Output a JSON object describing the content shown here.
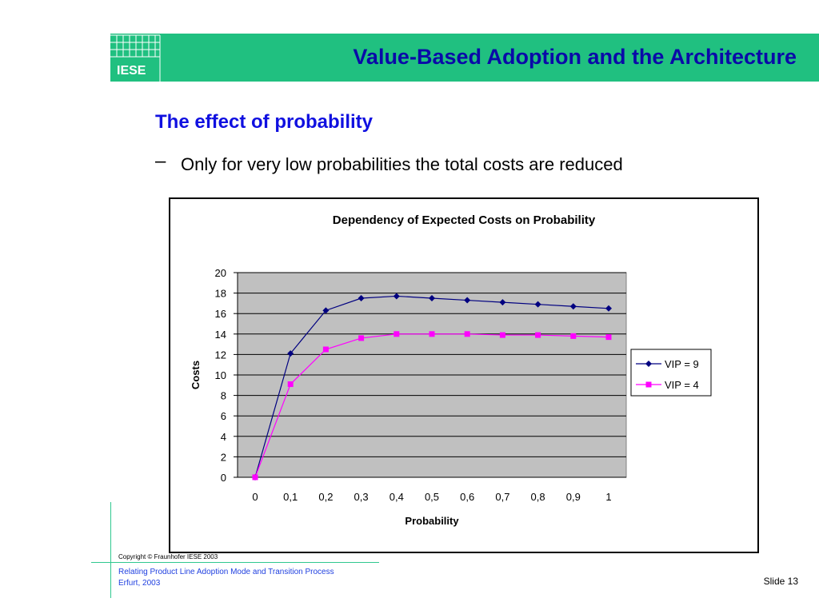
{
  "header": {
    "logo_text": "IESE",
    "title": "Value-Based Adoption and the Architecture",
    "band_color": "#20c080"
  },
  "content": {
    "heading": "The effect of probability",
    "bullet_dash": "–",
    "bullet": "Only for very low probabilities the total costs are reduced"
  },
  "chart_data": {
    "type": "line",
    "title": "Dependency of Expected Costs on Probability",
    "xlabel": "Probability",
    "ylabel": "Costs",
    "categories": [
      "0",
      "0,1",
      "0,2",
      "0,3",
      "0,4",
      "0,5",
      "0,6",
      "0,7",
      "0,8",
      "0,9",
      "1"
    ],
    "ylim": [
      0,
      20
    ],
    "yticks": [
      0,
      2,
      4,
      6,
      8,
      10,
      12,
      14,
      16,
      18,
      20
    ],
    "grid": true,
    "legend": "right",
    "plot_background": "#c0c0c0",
    "series": [
      {
        "name": "VIP = 9",
        "color": "#000080",
        "marker": "diamond",
        "values": [
          0,
          12.1,
          16.3,
          17.5,
          17.7,
          17.5,
          17.3,
          17.1,
          16.9,
          16.7,
          16.5
        ]
      },
      {
        "name": "VIP = 4",
        "color": "#ff00ff",
        "marker": "square",
        "values": [
          0,
          9.1,
          12.5,
          13.6,
          14.0,
          14.0,
          14.0,
          13.9,
          13.9,
          13.8,
          13.7
        ]
      }
    ]
  },
  "footer": {
    "copyright": "Copyright © Fraunhofer IESE 2003",
    "line1": "Relating Product Line Adoption Mode and Transition Process",
    "line2": "Erfurt, 2003",
    "slide": "Slide 13"
  }
}
